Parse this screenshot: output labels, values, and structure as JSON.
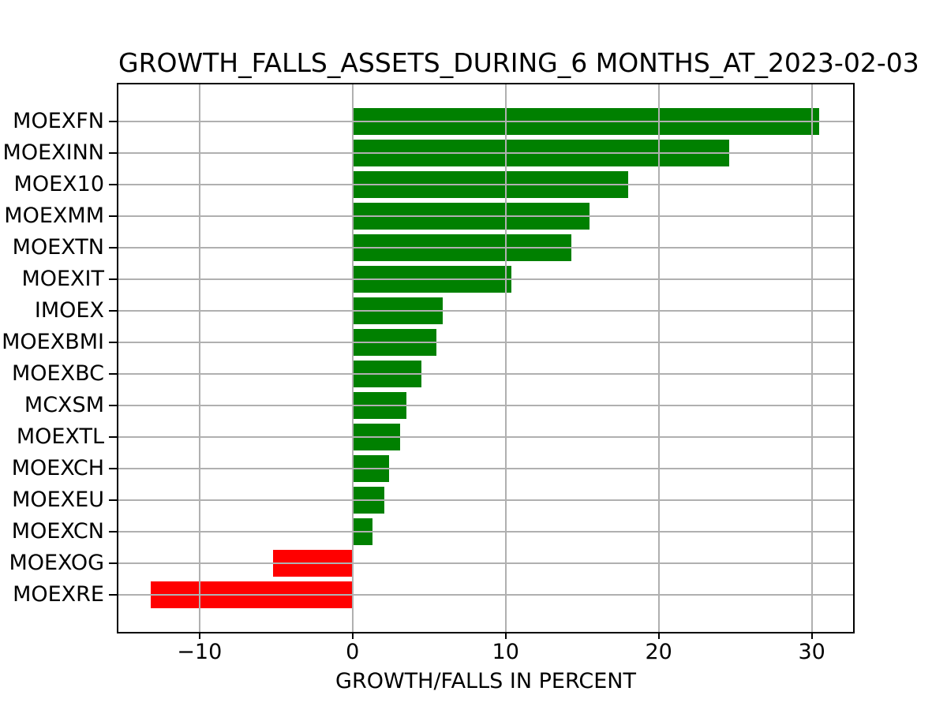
{
  "chart_data": {
    "type": "bar",
    "orientation": "horizontal",
    "title": "GROWTH_FALLS_ASSETS_DURING_6 MONTHS_AT_2023-02-03",
    "xlabel": "GROWTH/FALLS IN PERCENT",
    "ylabel": "",
    "categories": [
      "MOEXFN",
      "MOEXINN",
      "MOEX10",
      "MOEXMM",
      "MOEXTN",
      "MOEXIT",
      "IMOEX",
      "MOEXBMI",
      "MOEXBC",
      "MCXSM",
      "MOEXTL",
      "MOEXCH",
      "MOEXEU",
      "MOEXCN",
      "MOEXOG",
      "MOEXRE"
    ],
    "values": [
      30.5,
      24.6,
      18.0,
      15.5,
      14.3,
      10.4,
      5.9,
      5.5,
      4.5,
      3.5,
      3.1,
      2.4,
      2.1,
      1.3,
      -5.2,
      -13.2
    ],
    "xlim": [
      -15.3,
      32.7
    ],
    "xticks": [
      -10,
      0,
      10,
      20,
      30
    ],
    "xtick_labels": [
      "−10",
      "0",
      "10",
      "20",
      "30"
    ],
    "grid": true,
    "legend": "none",
    "colors": {
      "positive_bar": "#008000",
      "negative_bar": "#ff0000",
      "grid": "#b0b0b0",
      "axis": "#000000",
      "background": "#ffffff",
      "text": "#000000"
    }
  }
}
